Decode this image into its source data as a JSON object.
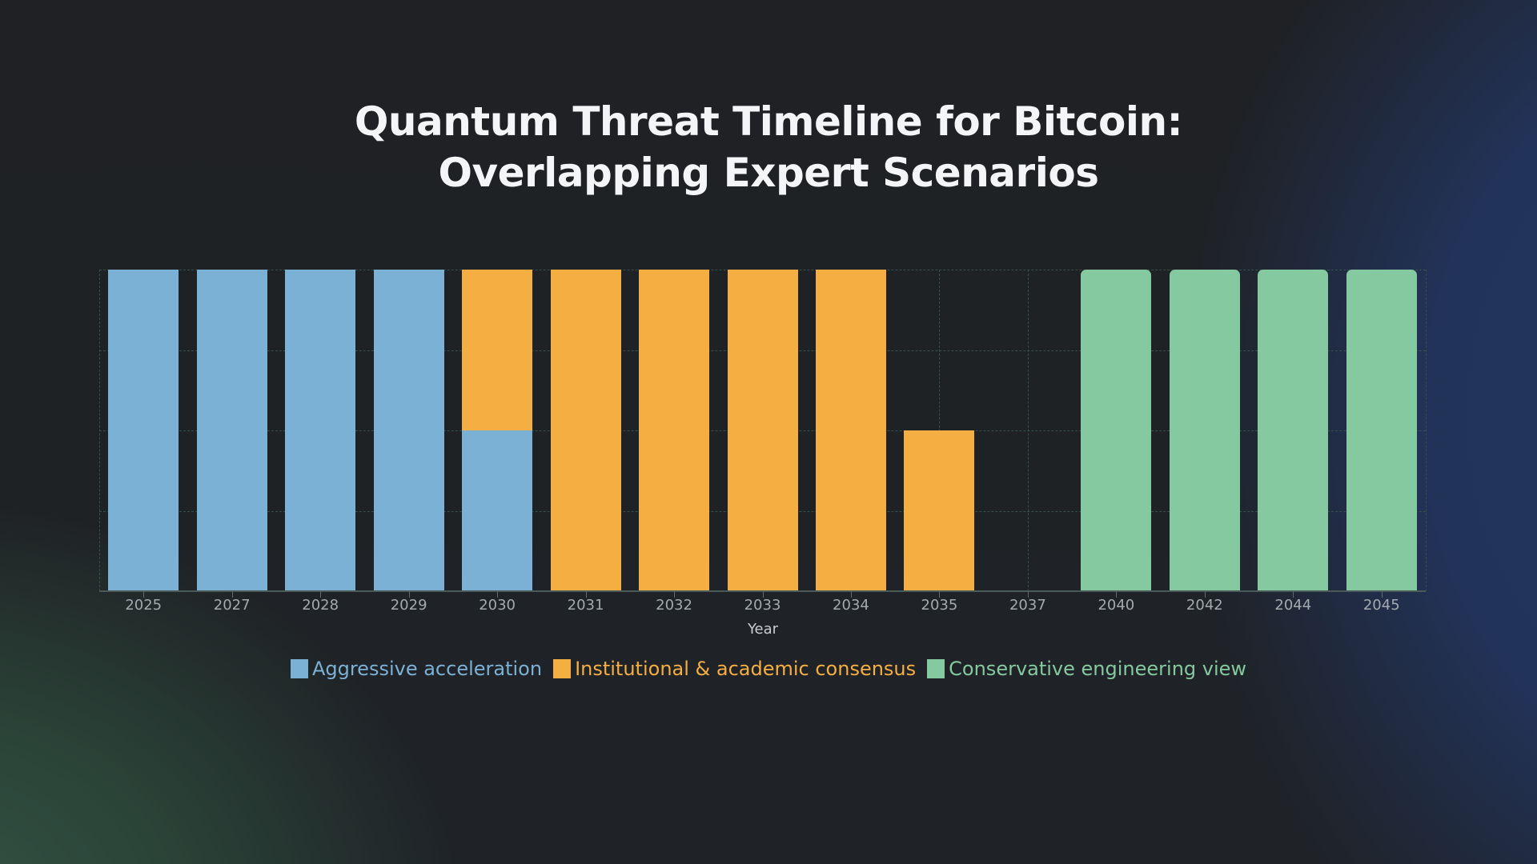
{
  "title": {
    "line1": "Quantum Threat Timeline for Bitcoin:",
    "line2": "Overlapping Expert Scenarios"
  },
  "colors": {
    "aggressive": "#7cb1d6",
    "institutional": "#f4ae42",
    "conservative": "#84c99f"
  },
  "legend": [
    {
      "label": "Aggressive acceleration",
      "color": "#7cb1d6"
    },
    {
      "label": "Institutional & academic consensus",
      "color": "#f4ae42"
    },
    {
      "label": "Conservative engineering view",
      "color": "#84c99f"
    }
  ],
  "chart_data": {
    "type": "bar",
    "stacked": true,
    "title": "Quantum Threat Timeline for Bitcoin: Overlapping Expert Scenarios",
    "xlabel": "Year",
    "ylabel": "",
    "ylim": [
      0,
      1
    ],
    "y_ticks_shown": false,
    "grid": true,
    "legend_position": "bottom",
    "categories": [
      "2025",
      "2027",
      "2028",
      "2029",
      "2030",
      "2031",
      "2032",
      "2033",
      "2034",
      "2035",
      "2037",
      "2040",
      "2042",
      "2044",
      "2045"
    ],
    "series": [
      {
        "name": "Aggressive acceleration",
        "color": "#7cb1d6",
        "values": [
          1,
          1,
          1,
          1,
          0.5,
          0,
          0,
          0,
          0,
          0,
          0,
          0,
          0,
          0,
          0
        ]
      },
      {
        "name": "Institutional & academic consensus",
        "color": "#f4ae42",
        "values": [
          0,
          0,
          0,
          0,
          0.5,
          1,
          1,
          1,
          1,
          0.5,
          0,
          0,
          0,
          0,
          0
        ]
      },
      {
        "name": "Conservative engineering view",
        "color": "#84c99f",
        "values": [
          0,
          0,
          0,
          0,
          0,
          0,
          0,
          0,
          0,
          0,
          0,
          1,
          1,
          1,
          1
        ]
      }
    ]
  }
}
